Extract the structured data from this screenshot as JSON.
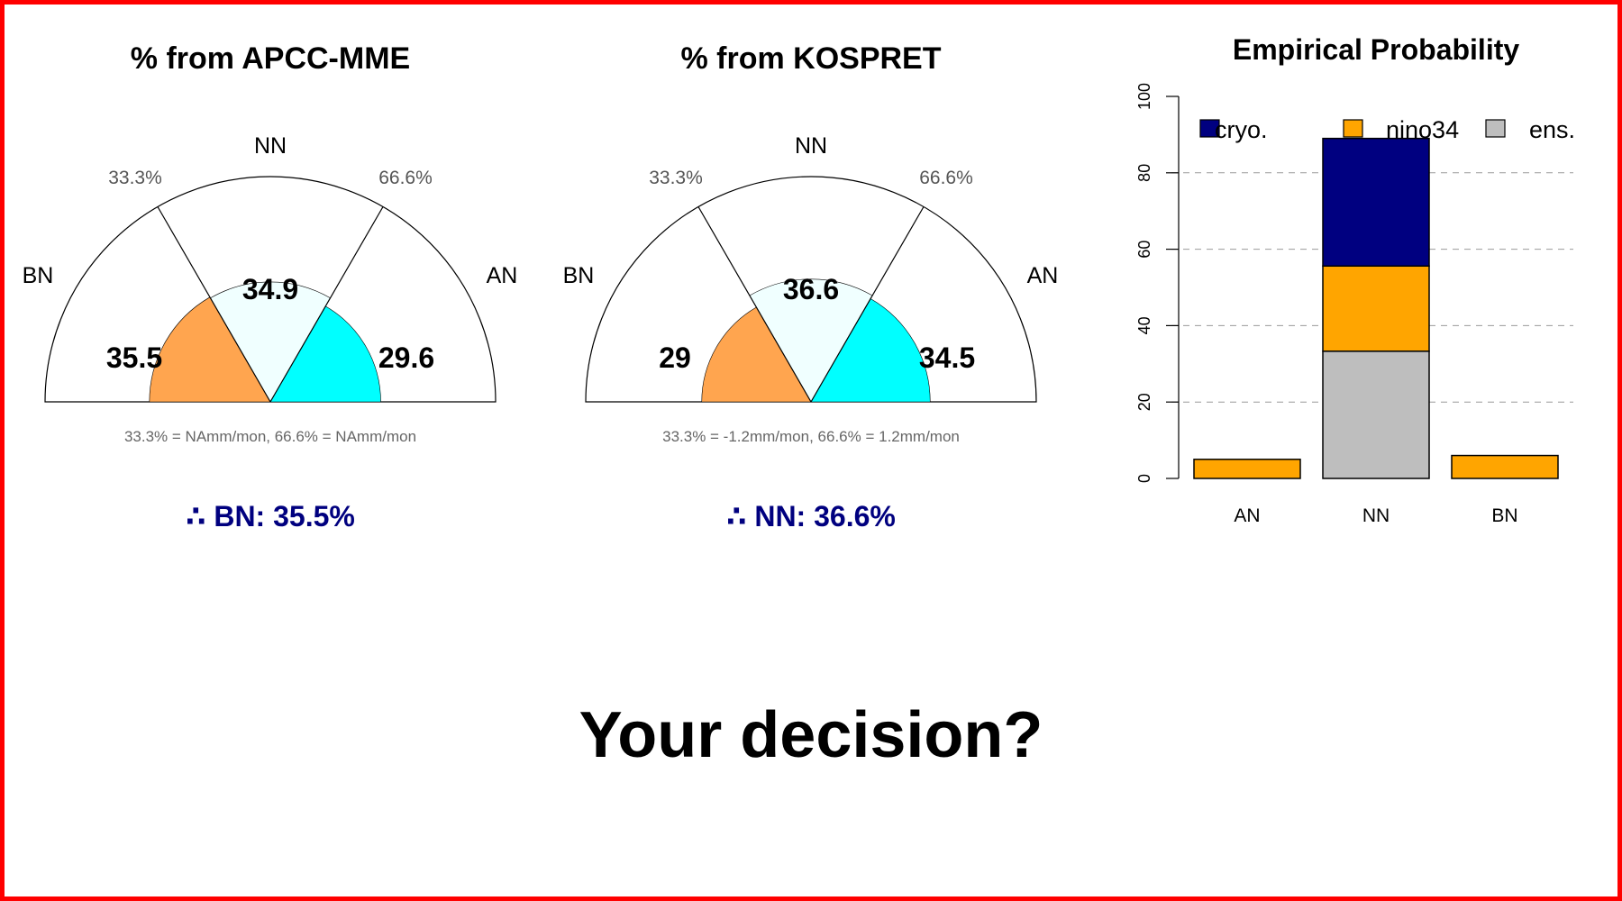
{
  "colors": {
    "bn": "#FFA54F",
    "nn": "#F0FFFF",
    "an": "#00FFFF",
    "cryo": "#000080",
    "nino34": "#FFA500",
    "ens": "#BEBEBE",
    "frame": "#FF0000",
    "conclusion": "#00007F"
  },
  "chart_data": [
    {
      "type": "pie",
      "title": "% from APCC-MME",
      "categories": [
        "BN",
        "NN",
        "AN"
      ],
      "values": [
        35.5,
        34.9,
        29.6
      ],
      "value_labels": [
        "35.5",
        "34.9",
        "29.6"
      ],
      "threshold_labels": [
        "33.3%",
        "66.6%"
      ],
      "note": "33.3% = NAmm/mon,  66.6% = NAmm/mon",
      "conclusion": "∴ BN: 35.5%"
    },
    {
      "type": "pie",
      "title": "% from KOSPRET",
      "categories": [
        "BN",
        "NN",
        "AN"
      ],
      "values": [
        29,
        36.6,
        34.5
      ],
      "value_labels": [
        "29",
        "36.6",
        "34.5"
      ],
      "threshold_labels": [
        "33.3%",
        "66.6%"
      ],
      "note": "33.3% = -1.2mm/mon,  66.6% = 1.2mm/mon",
      "conclusion": "∴ NN: 36.6%"
    },
    {
      "type": "bar",
      "stacked": true,
      "title": "Empirical Probability",
      "categories": [
        "AN",
        "NN",
        "BN"
      ],
      "series": [
        {
          "name": "ens.",
          "values": [
            0,
            33.3,
            0
          ]
        },
        {
          "name": "nino34",
          "values": [
            5,
            22.3,
            6
          ]
        },
        {
          "name": "cryo.",
          "values": [
            0,
            33.4,
            0
          ]
        }
      ],
      "legend": [
        "cryo.",
        "nino34",
        "ens."
      ],
      "ylim": [
        0,
        100
      ],
      "yticks": [
        "0",
        "20",
        "40",
        "60",
        "80",
        "100"
      ],
      "grid": "horizontal dashed",
      "legend_position": "top"
    }
  ],
  "decision_text": "Your decision?"
}
